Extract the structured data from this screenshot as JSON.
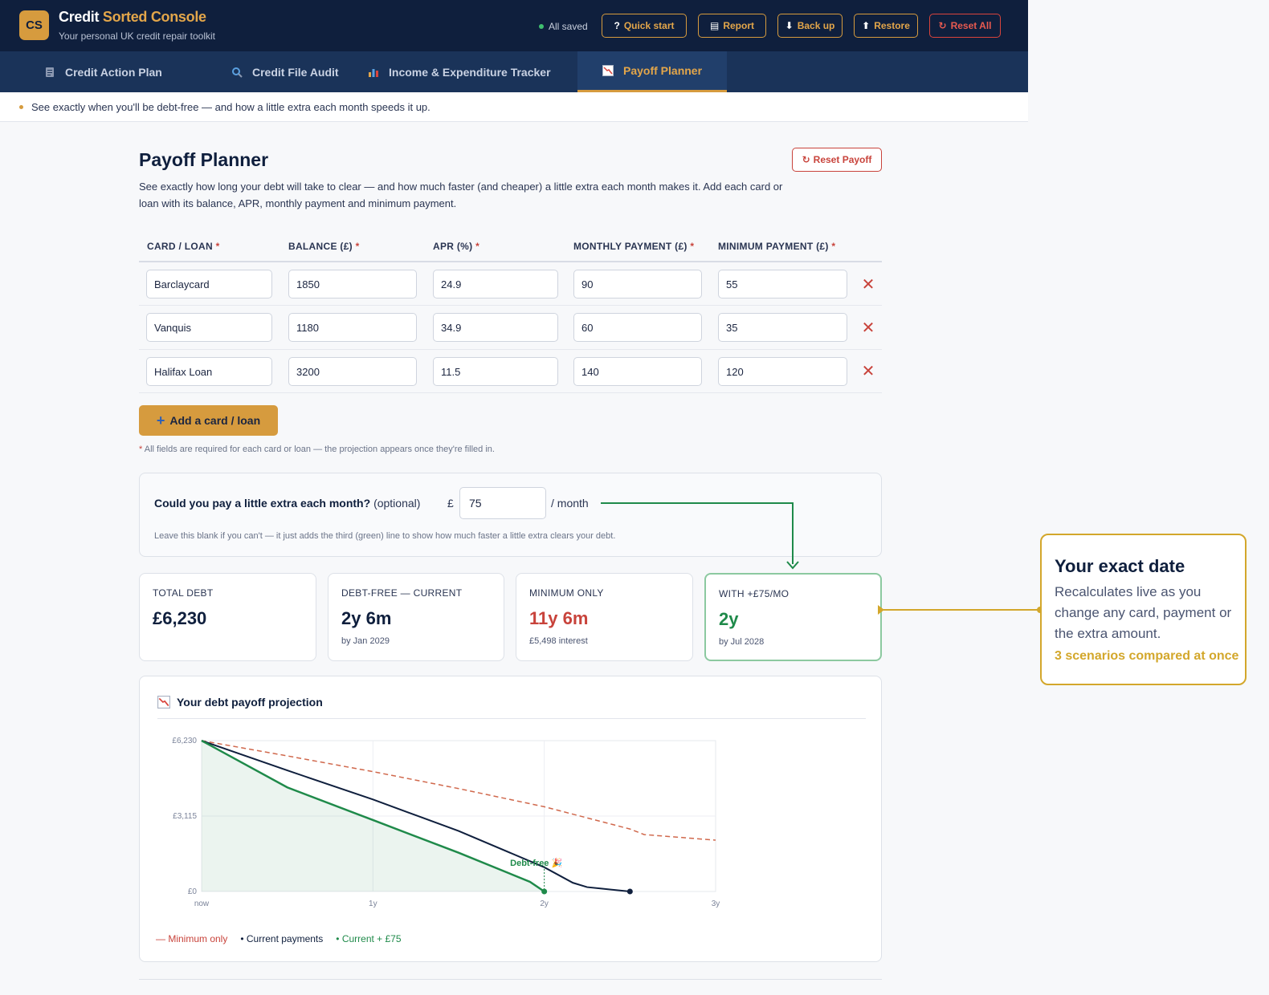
{
  "header": {
    "logo_text": "CS",
    "title_part1": "Credit",
    "title_part2": "Sorted Console",
    "subtitle": "Your personal UK credit repair toolkit",
    "saved_status": "All saved",
    "buttons": {
      "quick_start": "Quick start",
      "report": "Report",
      "back_up": "Back up",
      "restore": "Restore",
      "reset_all": "Reset All"
    }
  },
  "tabs": [
    {
      "label": "Credit Action Plan",
      "icon": "clipboard-icon"
    },
    {
      "label": "Credit File Audit",
      "icon": "magnifier-icon"
    },
    {
      "label": "Income & Expenditure Tracker",
      "icon": "chart-icon"
    },
    {
      "label": "Payoff Planner",
      "icon": "trend-down-icon",
      "active": true
    }
  ],
  "hint": "See exactly when you'll be debt-free — and how a little extra each month speeds it up.",
  "page": {
    "title": "Payoff Planner",
    "reset_label": "Reset Payoff",
    "intro": "See exactly how long your debt will take to clear — and how much faster (and cheaper) a little extra each month makes it. Add each card or loan with its balance, APR, monthly payment and minimum payment."
  },
  "table": {
    "headers": [
      "CARD / LOAN",
      "BALANCE (£)",
      "APR (%)",
      "MONTHLY PAYMENT (£)",
      "MINIMUM PAYMENT (£)"
    ],
    "required_marker": "*",
    "rows": [
      {
        "name": "Barclaycard",
        "balance": "1850",
        "apr": "24.9",
        "monthly": "90",
        "minimum": "55"
      },
      {
        "name": "Vanquis",
        "balance": "1180",
        "apr": "34.9",
        "monthly": "60",
        "minimum": "35"
      },
      {
        "name": "Halifax Loan",
        "balance": "3200",
        "apr": "11.5",
        "monthly": "140",
        "minimum": "120"
      }
    ],
    "delete_glyph": "✕",
    "add_label": "Add a card / loan",
    "footnote": "All fields are required for each card or loan — the projection appears once they're filled in."
  },
  "extra": {
    "question": "Could you pay a little extra each month?",
    "optional": "(optional)",
    "currency": "£",
    "value": "75",
    "unit": "/ month",
    "hint": "Leave this blank if you can't — it just adds the third (green) line to show how much faster a little extra clears your debt."
  },
  "stats": [
    {
      "label": "TOTAL DEBT",
      "value": "£6,230",
      "sub": ""
    },
    {
      "label": "DEBT-FREE — CURRENT",
      "value": "2y 6m",
      "sub": "by Jan 2029"
    },
    {
      "label": "MINIMUM ONLY",
      "value": "11y 6m",
      "sub": "£5,498 interest"
    },
    {
      "label": "WITH +£75/MO",
      "value": "2y",
      "sub": "by Jul 2028"
    }
  ],
  "chart": {
    "title": "Your debt payoff projection",
    "annotation": "Debt-free 🎉",
    "legend": {
      "min": "— Minimum only",
      "cur": "• Current payments",
      "plus": "• Current + £75"
    },
    "colors": {
      "min": "#d0684c",
      "cur": "#0f1f3d",
      "plus": "#1f8a4a"
    }
  },
  "chart_data": {
    "type": "line",
    "x_label_ticks": [
      "now",
      "1y",
      "2y",
      "3y"
    ],
    "y_tick_labels": [
      "£6,230",
      "£3,115",
      "£0"
    ],
    "xlim_months": [
      0,
      36
    ],
    "ylim": [
      0,
      6230
    ],
    "series": [
      {
        "name": "Minimum only",
        "style": "dashed",
        "x_months": [
          0,
          6,
          12,
          18,
          24,
          30,
          31,
          36
        ],
        "values": [
          6230,
          5600,
          4950,
          4250,
          3500,
          2580,
          2350,
          2120
        ]
      },
      {
        "name": "Current payments",
        "style": "solid",
        "x_months": [
          0,
          6,
          12,
          18,
          24,
          26,
          27,
          28,
          30
        ],
        "values": [
          6230,
          5000,
          3800,
          2500,
          1000,
          360,
          180,
          120,
          0
        ]
      },
      {
        "name": "Current + £75",
        "style": "solid-filled",
        "x_months": [
          0,
          6,
          12,
          18,
          23,
          24
        ],
        "values": [
          6230,
          4300,
          2950,
          1600,
          400,
          0
        ]
      }
    ]
  },
  "callout": {
    "title": "Your exact date",
    "body": "Recalculates live as you change any card, payment or the extra amount.",
    "tag": "3 scenarios compared at once"
  }
}
